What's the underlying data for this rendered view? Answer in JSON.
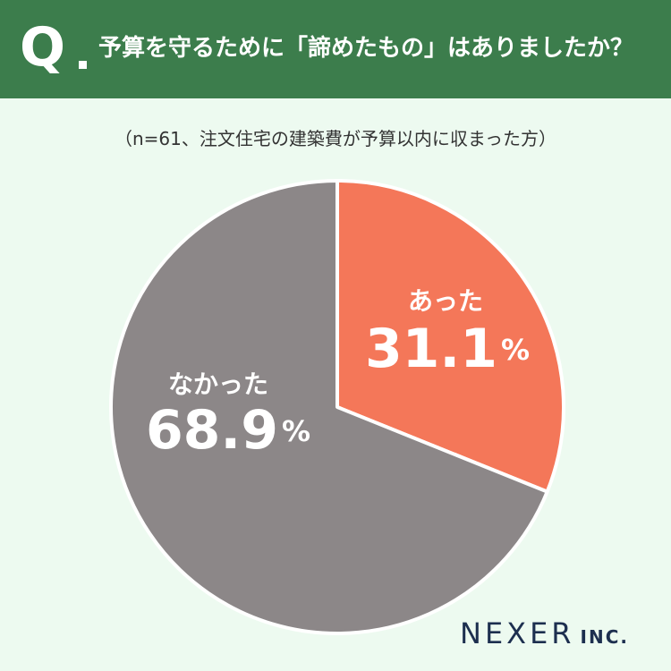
{
  "header": {
    "q_label": "Q",
    "question": "予算を守るために「諦めたもの」はありましたか？"
  },
  "subtitle": "（n=61、注文住宅の建築費が予算以内に収まった方）",
  "chart_data": {
    "type": "pie",
    "slices": [
      {
        "label": "あった",
        "value": 31.1,
        "value_text": "31.1",
        "color": "#f47759"
      },
      {
        "label": "なかった",
        "value": 68.9,
        "value_text": "68.9",
        "color": "#8c8788"
      }
    ],
    "unit": "%"
  },
  "brand": {
    "name": "NEXER",
    "suffix": "INC."
  }
}
